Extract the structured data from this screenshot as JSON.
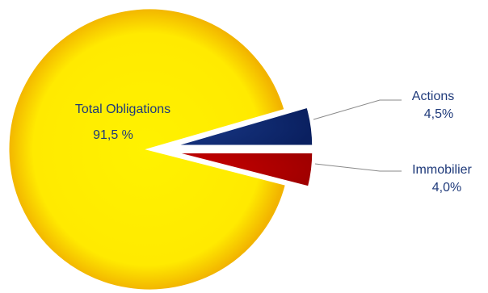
{
  "chart_data": {
    "type": "pie",
    "title": "",
    "slices": [
      {
        "label": "Total Obligations",
        "value": 91.5,
        "display": "91,5 %",
        "color": "#ffee00"
      },
      {
        "label": "Actions",
        "value": 4.5,
        "display": "4,5%",
        "color": "#0d2a6e"
      },
      {
        "label": "Immobilier",
        "value": 4.0,
        "display": "4,0%",
        "color": "#c00000"
      }
    ],
    "exploded": [
      "Actions",
      "Immobilier"
    ],
    "legend": "none",
    "label_color": "#1f3a7a"
  }
}
